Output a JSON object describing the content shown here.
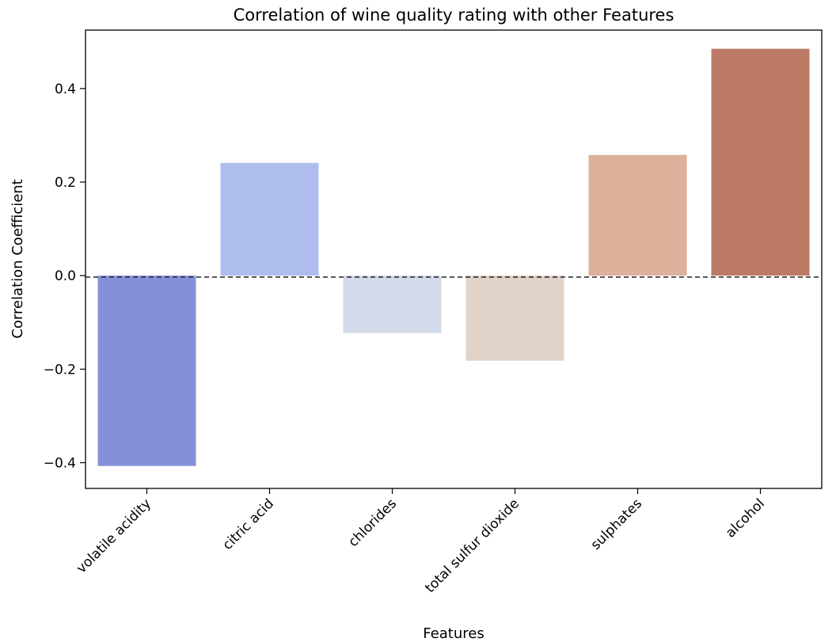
{
  "chart_data": {
    "type": "bar",
    "title": "Correlation of wine quality rating with other Features",
    "xlabel": "Features",
    "ylabel": "Correlation Coefficient",
    "categories": [
      "volatile acidity",
      "citric acid",
      "chlorides",
      "total sulfur dioxide",
      "sulphates",
      "alcohol"
    ],
    "values": [
      -0.407,
      0.241,
      -0.123,
      -0.182,
      0.258,
      0.485
    ],
    "colors": [
      "#8491da",
      "#aebdee",
      "#d2d9e8",
      "#e1d3c8",
      "#dcb09a",
      "#bd7a67"
    ],
    "ylim": [
      -0.455,
      0.525
    ],
    "yticks": [
      -0.4,
      -0.2,
      0.0,
      0.2,
      0.4
    ],
    "ytick_labels": [
      "−0.4",
      "−0.2",
      "0.0",
      "0.2",
      "0.4"
    ],
    "reference_line": 0.0,
    "grid": false,
    "legend": "none"
  }
}
